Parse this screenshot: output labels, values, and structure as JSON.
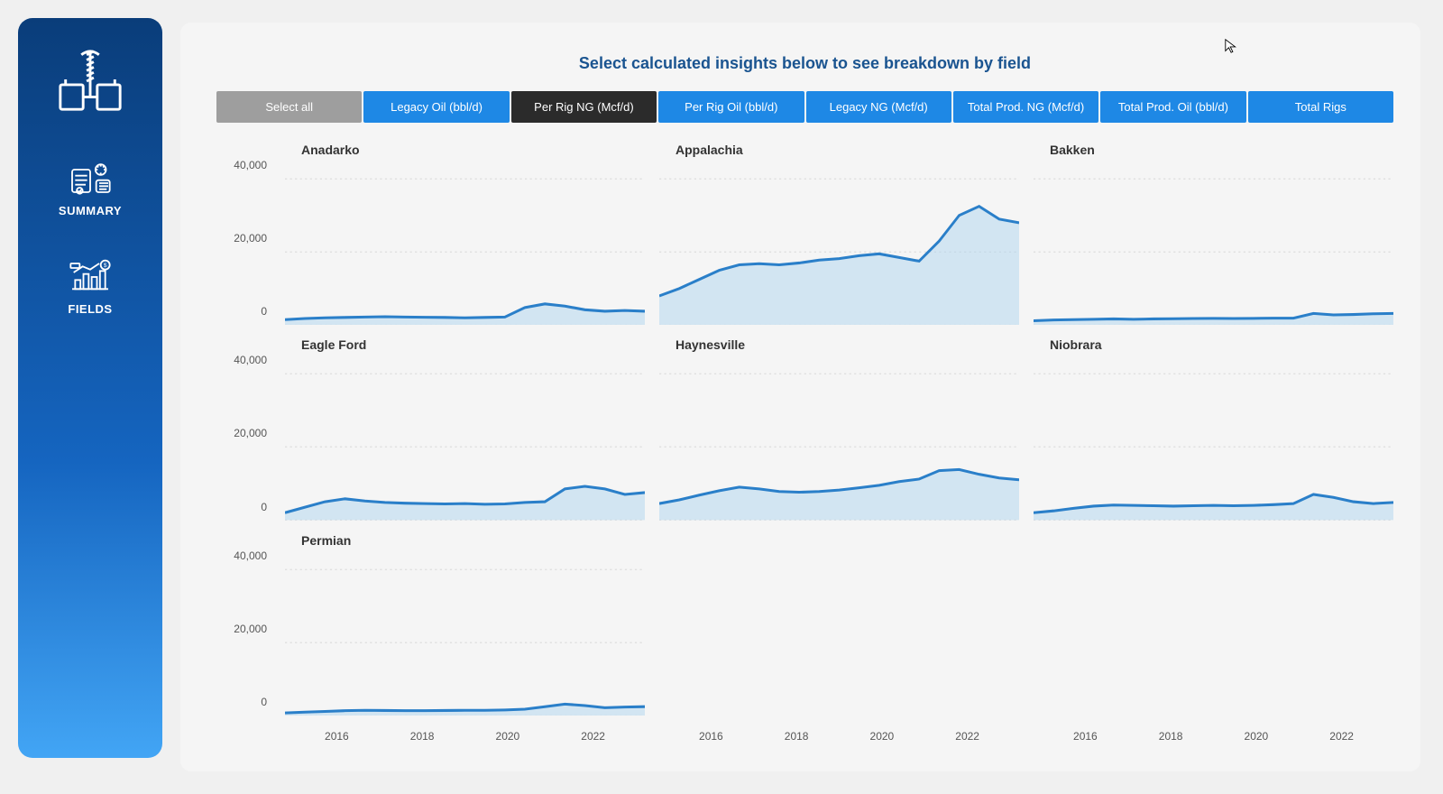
{
  "sidebar": {
    "items": [
      {
        "label": "SUMMARY"
      },
      {
        "label": "FIELDS"
      }
    ]
  },
  "header": {
    "title": "Select calculated insights below to see breakdown by field"
  },
  "tabs": [
    {
      "label": "Select all",
      "style": "grey"
    },
    {
      "label": "Legacy Oil (bbl/d)",
      "style": "blue"
    },
    {
      "label": "Per Rig NG (Mcf/d)",
      "style": "dark"
    },
    {
      "label": "Per Rig Oil (bbl/d)",
      "style": "blue"
    },
    {
      "label": "Legacy NG (Mcf/d)",
      "style": "blue"
    },
    {
      "label": "Total Prod. NG (Mcf/d)",
      "style": "blue"
    },
    {
      "label": "Total Prod. Oil (bbl/d)",
      "style": "blue"
    },
    {
      "label": "Total Rigs",
      "style": "blue"
    }
  ],
  "chart_style": {
    "ylim": [
      0,
      45000
    ],
    "yticks": [
      40000,
      20000,
      0
    ],
    "ytick_labels": [
      "40,000",
      "20,000",
      "0"
    ],
    "xlim": [
      2014,
      2023
    ],
    "xticks": [
      2016,
      2018,
      2020,
      2022
    ],
    "xtick_labels": [
      "2016",
      "2018",
      "2020",
      "2022"
    ],
    "line_color": "#2a7fc9",
    "fill_color": "#a9d2ef",
    "grid_visible": true,
    "grid_color": "#dddddd",
    "background_color": "#f5f5f5",
    "title_fontsize": 14,
    "title_fontweight": 700,
    "axis_fontsize": 12,
    "axis_color": "#555555",
    "n_points": 19
  },
  "charts": [
    {
      "title": "Anadarko",
      "values": [
        1500,
        1800,
        2000,
        2100,
        2200,
        2300,
        2200,
        2150,
        2100,
        2000,
        2100,
        2200,
        4800,
        5800,
        5200,
        4200,
        3800,
        4000,
        3800
      ]
    },
    {
      "title": "Appalachia",
      "values": [
        8000,
        10000,
        12500,
        15000,
        16500,
        16800,
        16500,
        17000,
        17800,
        18200,
        19000,
        19500,
        18500,
        17500,
        23000,
        30000,
        32500,
        29000,
        28000
      ]
    },
    {
      "title": "Bakken",
      "values": [
        1200,
        1400,
        1500,
        1600,
        1700,
        1600,
        1700,
        1750,
        1800,
        1850,
        1800,
        1850,
        1900,
        1900,
        3200,
        2800,
        2900,
        3100,
        3200
      ]
    },
    {
      "title": "Eagle Ford",
      "values": [
        2000,
        3500,
        5000,
        5800,
        5200,
        4800,
        4600,
        4500,
        4400,
        4500,
        4300,
        4400,
        4800,
        5000,
        8500,
        9200,
        8500,
        7000,
        7500
      ]
    },
    {
      "title": "Haynesville",
      "values": [
        4500,
        5500,
        6800,
        8000,
        9000,
        8500,
        7800,
        7600,
        7800,
        8200,
        8800,
        9500,
        10500,
        11200,
        13500,
        13800,
        12500,
        11500,
        11000
      ]
    },
    {
      "title": "Niobrara",
      "values": [
        2000,
        2500,
        3200,
        3800,
        4100,
        4000,
        3900,
        3800,
        3900,
        4000,
        3900,
        4000,
        4200,
        4500,
        7000,
        6200,
        5000,
        4500,
        4800
      ]
    },
    {
      "title": "Permian",
      "values": [
        800,
        1000,
        1200,
        1400,
        1500,
        1450,
        1400,
        1400,
        1450,
        1500,
        1500,
        1600,
        1800,
        2500,
        3200,
        2800,
        2200,
        2400,
        2500
      ]
    }
  ]
}
